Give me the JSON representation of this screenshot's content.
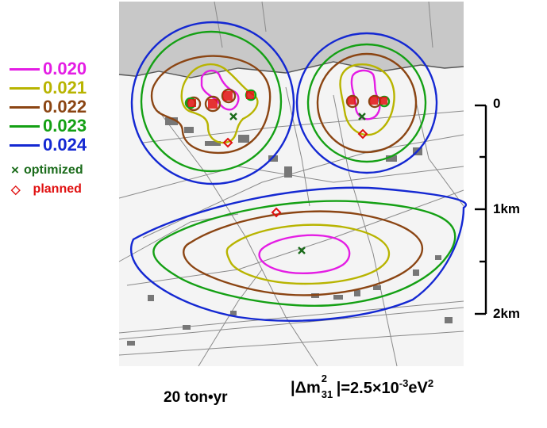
{
  "legend": {
    "contours": [
      {
        "value": "0.020",
        "color": "#e41de4"
      },
      {
        "value": "0.021",
        "color": "#b8b400"
      },
      {
        "value": "0.022",
        "color": "#8b4513"
      },
      {
        "value": "0.023",
        "color": "#14a014"
      },
      {
        "value": "0.024",
        "color": "#1428d2"
      }
    ],
    "optimized": {
      "label": "optimized",
      "symbol": "×",
      "color": "#1a6b1a"
    },
    "planned": {
      "label": "planned",
      "symbol": "◇",
      "color": "#e01010"
    }
  },
  "scale_bar": {
    "labels": [
      "0",
      "1km",
      "2km"
    ]
  },
  "caption": {
    "exposure": "20 ton•yr",
    "mass_prefix": "|Δm",
    "mass_sup": "2",
    "mass_sub": "31",
    "mass_mid": "|=2.5×10",
    "mass_exp": "-3",
    "mass_unit": "eV",
    "mass_unit_sup": "2"
  },
  "colors": {
    "map_background": "#f4f4f4",
    "sea": "#c8c8c8",
    "roads": "#9a9a9a"
  }
}
